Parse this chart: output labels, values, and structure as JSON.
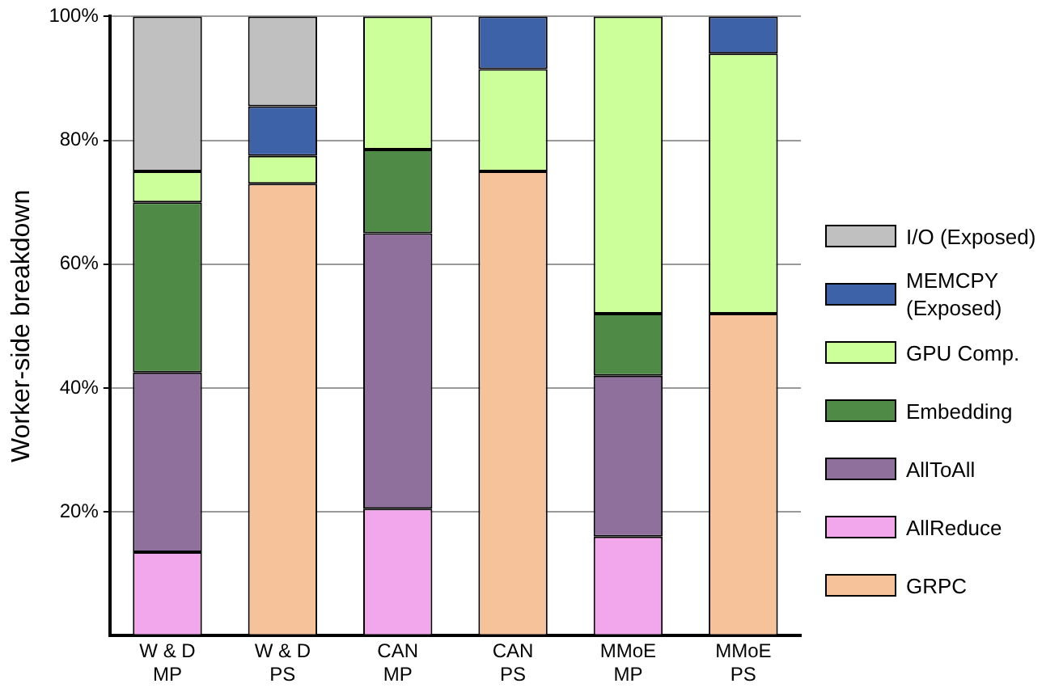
{
  "chart_data": {
    "type": "bar",
    "stacked": true,
    "ylabel": "Worker-side breakdown",
    "categories": [
      "W & D\nMP",
      "W & D\nPS",
      "CAN\nMP",
      "CAN\nPS",
      "MMoE\nMP",
      "MMoE\nPS"
    ],
    "series": [
      {
        "name": "GRPC",
        "color": "#f6c29a",
        "values": [
          null,
          73,
          null,
          75,
          null,
          52
        ]
      },
      {
        "name": "AllReduce",
        "color": "#f2a6ec",
        "values": [
          13.5,
          null,
          20.5,
          null,
          16,
          null
        ]
      },
      {
        "name": "AllToAll",
        "color": "#8f6f9c",
        "values": [
          29,
          null,
          44.5,
          null,
          26,
          null
        ]
      },
      {
        "name": "Embedding",
        "color": "#4f8a46",
        "values": [
          27.5,
          null,
          13.5,
          null,
          10,
          null
        ]
      },
      {
        "name": "GPU Comp.",
        "color": "#ccff99",
        "values": [
          5,
          4.5,
          21.5,
          16.5,
          48,
          42
        ]
      },
      {
        "name": "MEMCPY\n(Exposed)",
        "color": "#3d62a8",
        "values": [
          null,
          8,
          null,
          8.5,
          null,
          6
        ]
      },
      {
        "name": "I/O (Exposed)",
        "color": "#c0c0c0",
        "values": [
          25,
          14.5,
          null,
          null,
          null,
          null
        ]
      }
    ],
    "ylim": [
      0,
      100
    ],
    "yticks": [
      {
        "value": 20,
        "label": "20%"
      },
      {
        "value": 40,
        "label": "40%"
      },
      {
        "value": 60,
        "label": "60%"
      },
      {
        "value": 80,
        "label": "80%"
      },
      {
        "value": 100,
        "label": "100%"
      }
    ],
    "grid": "y",
    "legend": "right"
  }
}
